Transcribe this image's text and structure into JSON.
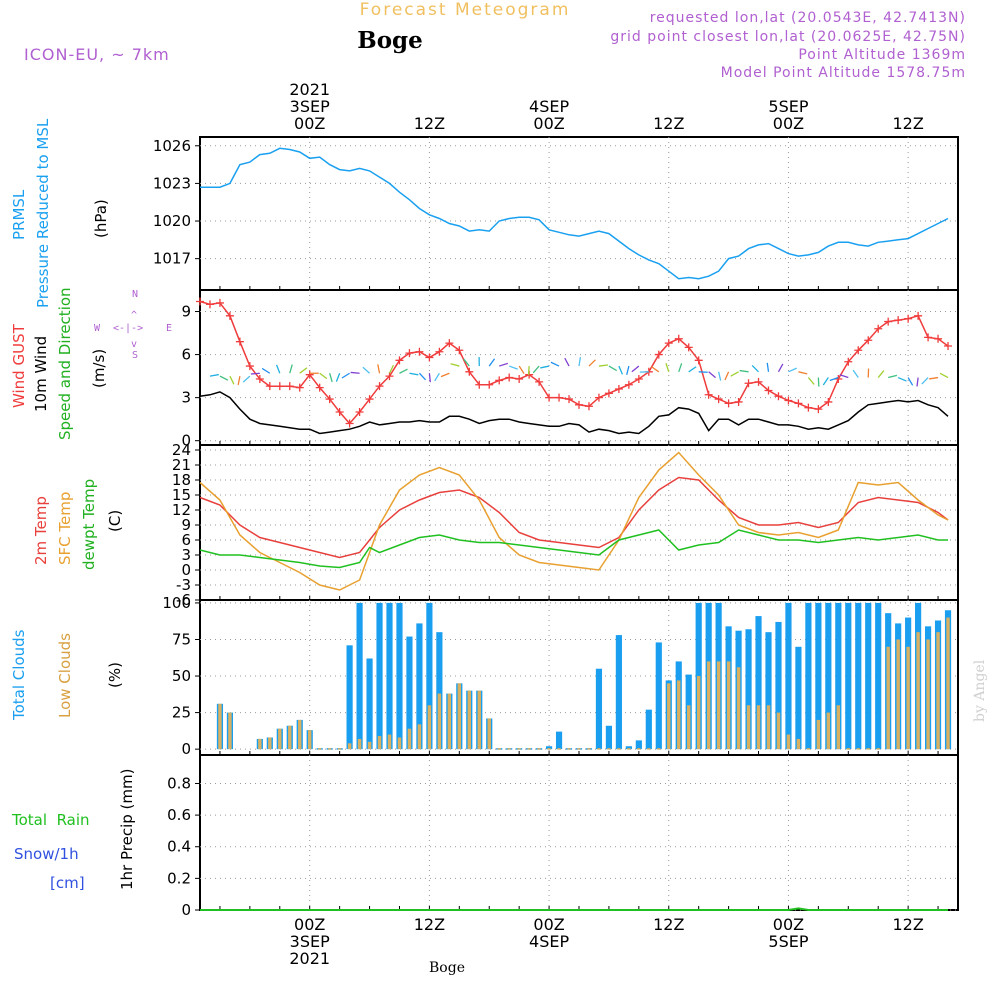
{
  "header": {
    "subtitle": "Forecast Meteogram",
    "location": "Boge",
    "model": "ICON-EU, ~ 7km",
    "requested": "requested lon,lat (20.0543E, 42.7413N)",
    "gridpoint": "grid point closest lon,lat (20.0625E, 42.75N)",
    "altitude": "Point Altitude 1369m",
    "model_altitude": "Model Point Altitude 1578.75m",
    "footer_location": "Boge",
    "credit": "by Angel"
  },
  "time_axis": {
    "top_labels": [
      {
        "t": 0,
        "lines": [
          "2021",
          "3SEP",
          "00Z"
        ]
      },
      {
        "t": 12,
        "lines": [
          "12Z"
        ]
      },
      {
        "t": 24,
        "lines": [
          "4SEP",
          "00Z"
        ]
      },
      {
        "t": 36,
        "lines": [
          "12Z"
        ]
      },
      {
        "t": 48,
        "lines": [
          "5SEP",
          "00Z"
        ]
      },
      {
        "t": 60,
        "lines": [
          "12Z"
        ]
      }
    ],
    "bottom_labels": [
      {
        "t": 0,
        "lines": [
          "00Z",
          "3SEP",
          "2021"
        ]
      },
      {
        "t": 12,
        "lines": [
          "12Z"
        ]
      },
      {
        "t": 24,
        "lines": [
          "00Z",
          "4SEP"
        ]
      },
      {
        "t": 36,
        "lines": [
          "12Z"
        ]
      },
      {
        "t": 48,
        "lines": [
          "00Z",
          "5SEP"
        ]
      },
      {
        "t": 60,
        "lines": [
          "12Z"
        ]
      }
    ]
  },
  "panel_labels": {
    "pressure": {
      "l1": "PRMSL",
      "l2": "Pressure Reduced to MSL",
      "unit": "(hPa)"
    },
    "wind": {
      "gust": "Wind GUST",
      "wind10": "10m Wind",
      "speed": "Speed and Direction",
      "unit": "(m/s)",
      "compass_n": "N",
      "compass_s": "S",
      "compass_w": "W",
      "compass_e": "E"
    },
    "temp": {
      "t2m": "2m Temp",
      "sfc": "SFC Temp",
      "dew": "dewpt Temp",
      "unit": "(C)"
    },
    "clouds": {
      "total": "Total Clouds",
      "low": "Low Clouds",
      "unit": "(%)"
    },
    "precip": {
      "rain": "Total  Rain",
      "snow": "Snow/1h",
      "snow_unit": "[cm]",
      "ylabel": "1hr Precip (mm)"
    }
  },
  "colors": {
    "pressure": "#1aa0f0",
    "gust": "#f03c3c",
    "wind": "#000000",
    "t2m": "#e8403c",
    "sfc": "#e8a030",
    "dew": "#20c020",
    "total_cloud": "#1a9ff0",
    "low_cloud": "#d8b060",
    "purple": "#b060d0",
    "orange_title": "#f0c060"
  },
  "chart_data": [
    {
      "type": "line",
      "name": "pressure",
      "title": "PRMSL Pressure Reduced to MSL",
      "ylabel": "(hPa)",
      "ylim": [
        1014.5,
        1026.7
      ],
      "yticks": [
        1017,
        1020,
        1023,
        1026
      ],
      "x": [
        -11,
        -9,
        -8,
        -7,
        -6,
        -5,
        -4,
        -3,
        -2,
        -1,
        0,
        1,
        2,
        3,
        4,
        5,
        6,
        7,
        8,
        9,
        10,
        11,
        12,
        13,
        14,
        15,
        16,
        17,
        18,
        19,
        20,
        21,
        22,
        23,
        24,
        25,
        26,
        27,
        28,
        29,
        30,
        31,
        32,
        33,
        34,
        35,
        36,
        37,
        38,
        39,
        40,
        41,
        42,
        43,
        44,
        45,
        46,
        47,
        48,
        49,
        50,
        51,
        52,
        53,
        54,
        55,
        56,
        57,
        58,
        59,
        60,
        61,
        62,
        63,
        64
      ],
      "series": [
        {
          "name": "PRMSL",
          "values": [
            1022.7,
            1022.7,
            1023.0,
            1024.5,
            1024.7,
            1025.3,
            1025.4,
            1025.8,
            1025.7,
            1025.5,
            1025.0,
            1025.1,
            1024.5,
            1024.1,
            1024.0,
            1024.2,
            1024.0,
            1023.5,
            1023.0,
            1022.3,
            1021.7,
            1021.0,
            1020.5,
            1020.2,
            1019.8,
            1019.6,
            1019.2,
            1019.3,
            1019.2,
            1020.0,
            1020.2,
            1020.3,
            1020.3,
            1020.1,
            1019.3,
            1019.1,
            1018.9,
            1018.8,
            1019.0,
            1019.2,
            1019.0,
            1018.4,
            1017.8,
            1017.3,
            1016.9,
            1016.6,
            1016.0,
            1015.4,
            1015.5,
            1015.4,
            1015.6,
            1016.0,
            1017.0,
            1017.2,
            1017.8,
            1018.1,
            1018.2,
            1017.8,
            1017.4,
            1017.2,
            1017.3,
            1017.5,
            1018.0,
            1018.3,
            1018.3,
            1018.1,
            1018.0,
            1018.3,
            1018.4,
            1018.5,
            1018.6,
            1019.0,
            1019.4,
            1019.8,
            1020.2
          ]
        }
      ]
    },
    {
      "type": "line",
      "name": "wind",
      "title": "Wind GUST / 10m Wind Speed and Direction",
      "ylabel": "(m/s)",
      "ylim": [
        -0.3,
        10.5
      ],
      "yticks": [
        0,
        3,
        6,
        9
      ],
      "x": [
        -11,
        -10,
        -9,
        -8,
        -7,
        -6,
        -5,
        -4,
        -3,
        -2,
        -1,
        0,
        1,
        2,
        3,
        4,
        5,
        6,
        7,
        8,
        9,
        10,
        11,
        12,
        13,
        14,
        15,
        16,
        17,
        18,
        19,
        20,
        21,
        22,
        23,
        24,
        25,
        26,
        27,
        28,
        29,
        30,
        31,
        32,
        33,
        34,
        35,
        36,
        37,
        38,
        39,
        40,
        41,
        42,
        43,
        44,
        45,
        46,
        47,
        48,
        49,
        50,
        51,
        52,
        53,
        54,
        55,
        56,
        57,
        58,
        59,
        60,
        61,
        62,
        63,
        64
      ],
      "series": [
        {
          "name": "Wind GUST",
          "values": [
            9.7,
            9.5,
            9.6,
            8.7,
            6.9,
            5.2,
            4.3,
            3.8,
            3.8,
            3.8,
            3.7,
            4.6,
            3.7,
            2.9,
            2.0,
            1.2,
            2.0,
            2.9,
            3.8,
            4.5,
            5.6,
            6.1,
            6.2,
            5.8,
            6.2,
            6.8,
            6.3,
            4.8,
            3.9,
            3.9,
            4.2,
            4.4,
            4.3,
            4.6,
            4.1,
            3.0,
            3.0,
            2.9,
            2.5,
            2.4,
            3.0,
            3.3,
            3.6,
            3.9,
            4.3,
            4.8,
            6.0,
            6.8,
            7.1,
            6.5,
            5.6,
            3.2,
            2.9,
            2.6,
            2.7,
            4.0,
            4.1,
            3.5,
            3.1,
            2.8,
            2.6,
            2.3,
            2.2,
            2.7,
            4.3,
            5.5,
            6.3,
            7.0,
            7.8,
            8.3,
            8.4,
            8.5,
            8.7,
            7.2,
            7.1,
            6.6
          ]
        },
        {
          "name": "10m Wind",
          "values": [
            3.1,
            3.2,
            3.4,
            3.0,
            2.2,
            1.5,
            1.2,
            1.1,
            1.0,
            0.9,
            0.8,
            0.8,
            0.5,
            0.6,
            0.7,
            0.8,
            1.0,
            1.3,
            1.1,
            1.2,
            1.3,
            1.3,
            1.4,
            1.3,
            1.3,
            1.7,
            1.7,
            1.5,
            1.2,
            1.4,
            1.5,
            1.5,
            1.3,
            1.2,
            1.1,
            1.0,
            1.0,
            1.2,
            1.1,
            0.6,
            0.8,
            0.7,
            0.5,
            0.6,
            0.5,
            1.0,
            1.7,
            1.8,
            2.3,
            2.2,
            1.9,
            0.7,
            1.5,
            1.5,
            1.1,
            1.5,
            1.5,
            1.3,
            1.1,
            1.1,
            1.0,
            0.8,
            0.9,
            0.8,
            1.1,
            1.4,
            2.0,
            2.5,
            2.6,
            2.7,
            2.8,
            2.7,
            2.8,
            2.5,
            2.3,
            1.7
          ]
        }
      ]
    },
    {
      "type": "line",
      "name": "temperature",
      "title": "2m Temp / SFC Temp / dewpt Temp",
      "ylabel": "(C)",
      "ylim": [
        -6,
        25
      ],
      "yticks": [
        -6,
        -3,
        0,
        3,
        6,
        9,
        12,
        15,
        18,
        21,
        24
      ],
      "x": [
        -11,
        -9,
        -7,
        -5,
        -3,
        -1,
        1,
        3,
        5,
        6,
        7,
        9,
        11,
        13,
        15,
        17,
        19,
        21,
        23,
        25,
        27,
        29,
        31,
        33,
        35,
        37,
        39,
        41,
        43,
        45,
        47,
        49,
        51,
        53,
        55,
        57,
        59,
        61,
        63,
        64
      ],
      "series": [
        {
          "name": "2m Temp",
          "values": [
            14.5,
            13.0,
            9.0,
            6.5,
            5.5,
            4.5,
            3.5,
            2.5,
            3.5,
            6.0,
            8.5,
            12.0,
            14.0,
            15.5,
            16.0,
            14.5,
            11.5,
            7.5,
            6.0,
            5.5,
            5.0,
            4.5,
            6.5,
            12.0,
            16.0,
            18.5,
            18.0,
            14.0,
            10.5,
            9.0,
            9.0,
            9.5,
            8.5,
            9.5,
            13.5,
            14.5,
            14.0,
            13.5,
            11.5,
            10.0
          ]
        },
        {
          "name": "SFC Temp",
          "values": [
            17.5,
            14.0,
            7.0,
            3.5,
            1.5,
            -0.5,
            -3.0,
            -4.0,
            -2.0,
            3.5,
            9.0,
            16.0,
            19.0,
            20.5,
            19.0,
            14.0,
            6.5,
            3.0,
            1.5,
            1.0,
            0.5,
            0.0,
            6.0,
            14.5,
            20.0,
            23.5,
            19.0,
            15.0,
            9.0,
            7.5,
            7.0,
            7.5,
            6.5,
            8.0,
            17.5,
            17.0,
            17.5,
            14.0,
            11.0,
            10.0
          ]
        },
        {
          "name": "dewpt Temp",
          "values": [
            4.0,
            3.0,
            3.0,
            2.5,
            2.0,
            1.5,
            0.8,
            0.5,
            1.5,
            4.5,
            3.5,
            5.0,
            6.5,
            7.0,
            6.0,
            5.5,
            5.5,
            5.0,
            4.5,
            4.0,
            3.5,
            3.0,
            6.0,
            7.0,
            8.0,
            4.0,
            5.0,
            5.5,
            8.0,
            7.0,
            6.0,
            6.0,
            5.5,
            6.0,
            6.5,
            6.0,
            6.5,
            7.0,
            6.0,
            6.0
          ]
        }
      ]
    },
    {
      "type": "bar",
      "name": "clouds",
      "title": "Total Clouds / Low Clouds",
      "ylabel": "(%)",
      "ylim": [
        -4,
        102
      ],
      "yticks": [
        0,
        25,
        50,
        75,
        100
      ],
      "x": [
        -9,
        -8,
        -5,
        -4,
        -3,
        -2,
        -1,
        0,
        1,
        2,
        3,
        4,
        5,
        6,
        7,
        8,
        9,
        10,
        11,
        12,
        13,
        14,
        15,
        16,
        17,
        18,
        19,
        20,
        21,
        22,
        23,
        24,
        25,
        26,
        27,
        28,
        29,
        30,
        31,
        32,
        33,
        34,
        35,
        36,
        37,
        38,
        39,
        40,
        41,
        42,
        43,
        44,
        45,
        46,
        47,
        48,
        49,
        50,
        51,
        52,
        53,
        54,
        55,
        56,
        57,
        58,
        59,
        60,
        61,
        62,
        63,
        64
      ],
      "series": [
        {
          "name": "Total Clouds",
          "values": [
            31,
            25,
            7,
            8,
            14,
            16,
            20,
            13,
            0,
            0,
            0,
            71,
            100,
            62,
            100,
            100,
            100,
            77,
            86,
            100,
            80,
            38,
            45,
            40,
            40,
            21,
            0,
            0,
            0,
            0,
            0,
            2,
            12,
            0,
            0,
            0,
            55,
            16,
            78,
            2,
            6,
            27,
            73,
            47,
            60,
            51,
            100,
            100,
            100,
            84,
            81,
            82,
            91,
            80,
            87,
            100,
            70,
            100,
            100,
            100,
            100,
            100,
            100,
            100,
            100,
            93,
            86,
            90,
            100,
            84,
            88,
            95
          ]
        },
        {
          "name": "Low Clouds",
          "values": [
            31,
            25,
            7,
            8,
            14,
            16,
            20,
            13,
            0,
            0,
            0,
            4,
            7,
            5,
            9,
            10,
            8,
            14,
            17,
            30,
            38,
            38,
            45,
            40,
            40,
            21,
            0,
            0,
            0,
            0,
            0,
            0,
            0,
            0,
            0,
            0,
            0,
            0,
            0,
            0,
            0,
            0,
            0,
            45,
            47,
            30,
            50,
            60,
            60,
            60,
            56,
            30,
            30,
            30,
            25,
            10,
            7,
            0,
            20,
            25,
            30,
            0,
            0,
            0,
            0,
            70,
            75,
            70,
            80,
            75,
            80,
            90
          ]
        }
      ]
    },
    {
      "type": "line",
      "name": "precip",
      "title": "1hr Precip",
      "ylabel": "1hr Precip (mm)",
      "ylim": [
        0,
        0.98
      ],
      "yticks": [
        0,
        0.2,
        0.4,
        0.6,
        0.8
      ],
      "yticklabels": [
        "0",
        "0.2",
        "0.4",
        "0.6",
        "0.8"
      ],
      "x": [
        -11,
        48,
        49,
        50,
        64
      ],
      "series": [
        {
          "name": "Total Rain",
          "values": [
            0,
            0,
            0.01,
            0,
            0
          ]
        }
      ]
    }
  ]
}
